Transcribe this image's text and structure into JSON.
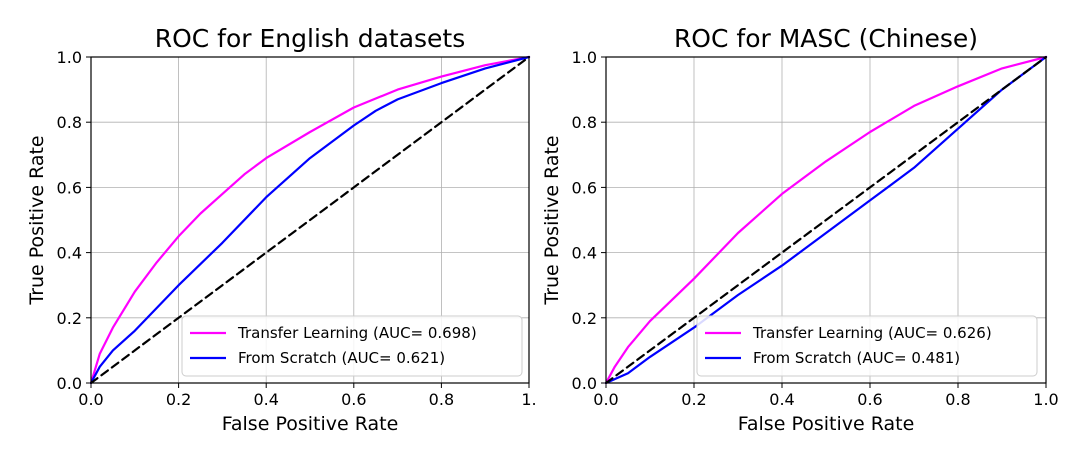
{
  "chart_data": [
    {
      "type": "line",
      "title": "ROC for English datasets",
      "xlabel": "False Positive Rate",
      "ylabel": "True Positive Rate",
      "xlim": [
        0,
        1
      ],
      "ylim": [
        0,
        1
      ],
      "grid": true,
      "legend_position": "lower-right",
      "xticks": [
        "0.0",
        "0.2",
        "0.4",
        "0.6",
        "0.8",
        "1."
      ],
      "yticks": [
        "0.0",
        "0.2",
        "0.4",
        "0.6",
        "0.8",
        "1.0"
      ],
      "series": [
        {
          "name": "Transfer Learning (AUC= 0.698)",
          "color": "#ff00ff",
          "x": [
            0,
            0.02,
            0.05,
            0.1,
            0.15,
            0.2,
            0.25,
            0.3,
            0.35,
            0.4,
            0.5,
            0.6,
            0.7,
            0.8,
            0.9,
            1.0
          ],
          "y": [
            0,
            0.09,
            0.17,
            0.28,
            0.37,
            0.45,
            0.52,
            0.58,
            0.64,
            0.69,
            0.77,
            0.845,
            0.9,
            0.94,
            0.975,
            1.0
          ]
        },
        {
          "name": "From Scratch (AUC= 0.621)",
          "color": "#0000ff",
          "x": [
            0,
            0.02,
            0.05,
            0.1,
            0.2,
            0.3,
            0.4,
            0.5,
            0.6,
            0.65,
            0.7,
            0.8,
            0.9,
            1.0
          ],
          "y": [
            0,
            0.05,
            0.1,
            0.16,
            0.3,
            0.43,
            0.57,
            0.69,
            0.79,
            0.835,
            0.87,
            0.92,
            0.965,
            1.0
          ]
        },
        {
          "name": "",
          "color": "#000000",
          "dashed": true,
          "x": [
            0,
            1
          ],
          "y": [
            0,
            1
          ]
        }
      ]
    },
    {
      "type": "line",
      "title": "ROC for MASC (Chinese)",
      "xlabel": "False Positive Rate",
      "ylabel": "True Positive Rate",
      "xlim": [
        0,
        1
      ],
      "ylim": [
        0,
        1
      ],
      "grid": true,
      "legend_position": "lower-right",
      "xticks": [
        "0.0",
        "0.2",
        "0.4",
        "0.6",
        "0.8",
        "1.0"
      ],
      "yticks": [
        "0.0",
        "0.2",
        "0.4",
        "0.6",
        "0.8",
        "1.0"
      ],
      "series": [
        {
          "name": "Transfer Learning (AUC= 0.626)",
          "color": "#ff00ff",
          "x": [
            0,
            0.02,
            0.05,
            0.1,
            0.2,
            0.3,
            0.4,
            0.5,
            0.6,
            0.7,
            0.8,
            0.9,
            1.0
          ],
          "y": [
            0,
            0.05,
            0.11,
            0.19,
            0.32,
            0.46,
            0.58,
            0.68,
            0.77,
            0.85,
            0.91,
            0.965,
            1.0
          ]
        },
        {
          "name": "From Scratch (AUC= 0.481)",
          "color": "#0000ff",
          "x": [
            0,
            0.05,
            0.1,
            0.2,
            0.3,
            0.4,
            0.5,
            0.6,
            0.7,
            0.8,
            0.9,
            1.0
          ],
          "y": [
            0,
            0.03,
            0.08,
            0.17,
            0.27,
            0.36,
            0.46,
            0.56,
            0.66,
            0.78,
            0.9,
            1.0
          ]
        },
        {
          "name": "",
          "color": "#000000",
          "dashed": true,
          "x": [
            0,
            1
          ],
          "y": [
            0,
            1
          ]
        }
      ]
    }
  ]
}
